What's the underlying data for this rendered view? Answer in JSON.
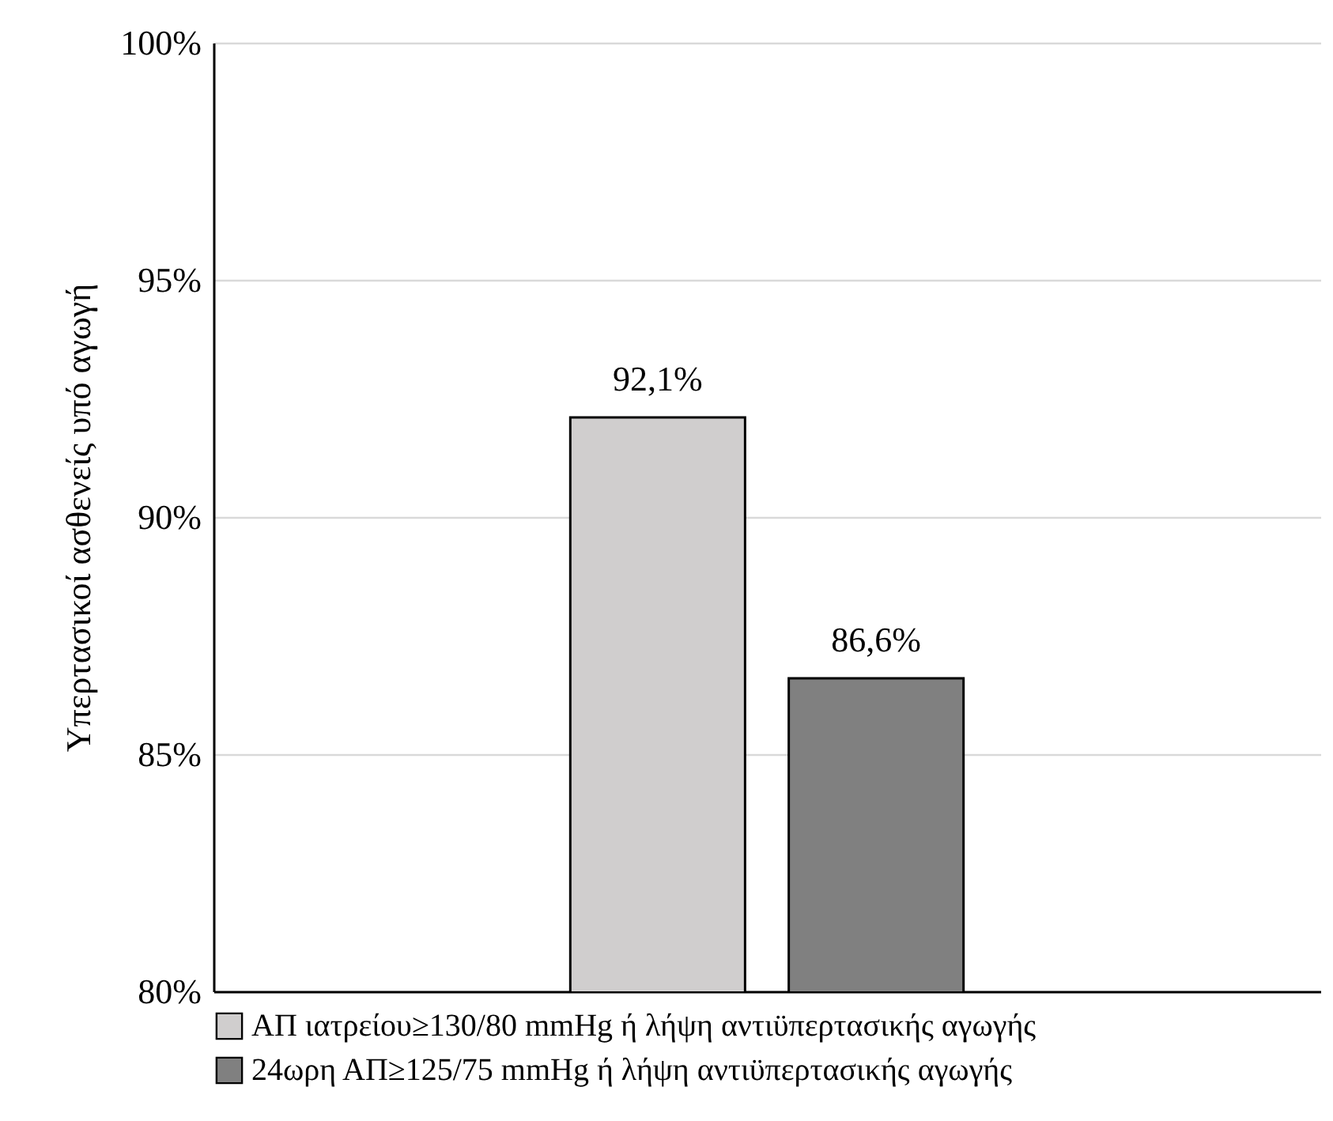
{
  "chart_data": {
    "type": "bar",
    "ylabel": "Υπερτασικοί ασθενείς υπό αγωγή",
    "categories": [
      null
    ],
    "series": [
      {
        "name": "ΑΠ ιατρείου≥130/80  mmHg  ή λήψη αντιϋπερτασικής αγωγής",
        "color": "#d0cece",
        "values": [
          92.1
        ],
        "value_labels": [
          "92,1%"
        ]
      },
      {
        "name": "24ωρη ΑΠ≥125/75  mmHg  ή λήψη αντιϋπερτασικής αγωγής",
        "color": "#808080",
        "values": [
          86.6
        ],
        "value_labels": [
          "86,6%"
        ]
      }
    ],
    "ylim": [
      80,
      100
    ],
    "yticks": [
      {
        "value": 80,
        "label": "80%"
      },
      {
        "value": 85,
        "label": "85%"
      },
      {
        "value": 90,
        "label": "90%"
      },
      {
        "value": 95,
        "label": "95%"
      },
      {
        "value": 100,
        "label": "100%"
      }
    ],
    "grid": "y",
    "legend": "bottom"
  }
}
